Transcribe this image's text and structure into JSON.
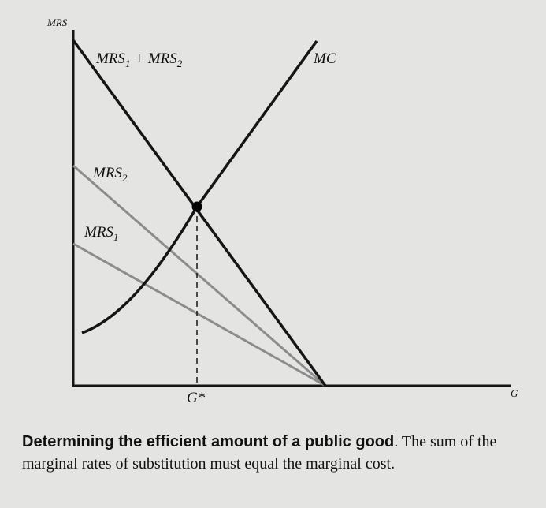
{
  "diagram": {
    "y_axis_label": "MRS",
    "x_axis_label": "G",
    "curves": [
      {
        "label_main": "MRS",
        "label_sub": "1",
        "label_plus": " + MRS",
        "label_sub2": "2",
        "color": "#151515"
      },
      {
        "label_main": "MRS",
        "label_sub": "2",
        "color": "#8c8c8c"
      },
      {
        "label_main": "MRS",
        "label_sub": "1",
        "color": "#8c8c8c"
      },
      {
        "label_main": "MC",
        "color": "#151515"
      }
    ],
    "equilibrium_label": "G*"
  },
  "caption": {
    "title": "Determining the efficient amount of a public good",
    "text": ". The sum of the marginal rates of substitution must equal the marginal cost."
  },
  "colors": {
    "background": "#e4e4e2",
    "dark_line": "#151515",
    "gray_line": "#8c8c8c"
  }
}
